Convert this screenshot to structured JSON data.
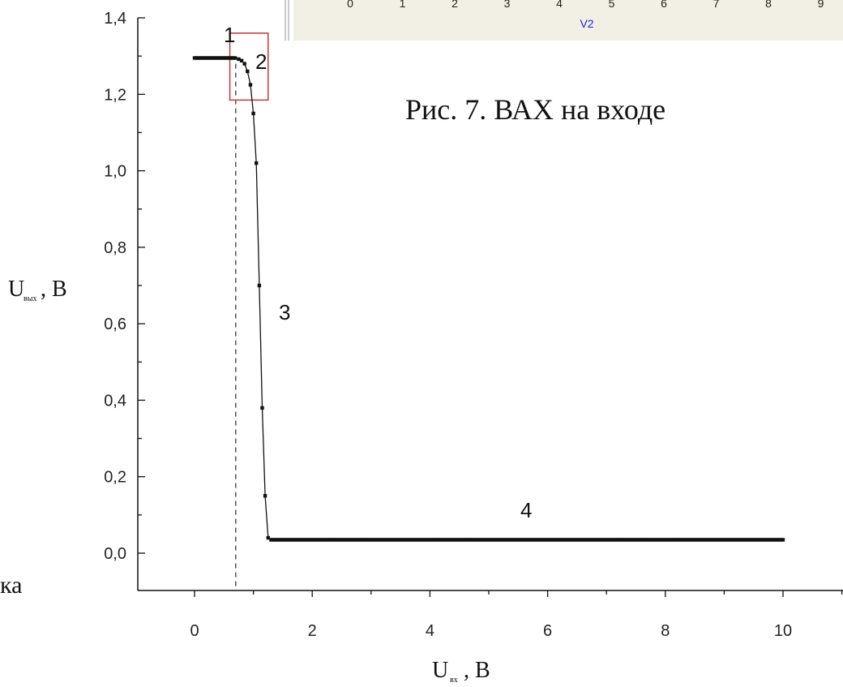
{
  "inset": {
    "ticks": [
      "0",
      "1",
      "2",
      "3",
      "4",
      "5",
      "6",
      "7",
      "8",
      "9"
    ],
    "xlabel": "V2",
    "label_color": "#1f1fd6",
    "background": "#f2f0e4"
  },
  "caption": "Рис. 7. ВАХ на входе",
  "left_fragment": "ка",
  "region_labels": {
    "r1": "1",
    "r2": "2",
    "r3": "3",
    "r4": "4"
  },
  "axis": {
    "ylabel_main": "U",
    "ylabel_sub": "вых",
    "ylabel_unit": ", В",
    "xlabel_main": "U",
    "xlabel_sub": "вх",
    "xlabel_unit": " , В"
  },
  "highlight_color": "#c0393b",
  "chart_data": {
    "type": "scatter",
    "xlim": [
      -1.0,
      11.0
    ],
    "ylim": [
      -0.1,
      1.4
    ],
    "x_ticks": [
      0,
      2,
      4,
      6,
      8,
      10
    ],
    "x_tick_labels": [
      "0",
      "2",
      "4",
      "6",
      "8",
      "10"
    ],
    "y_ticks": [
      0.0,
      0.2,
      0.4,
      0.6,
      0.8,
      1.0,
      1.2,
      1.4
    ],
    "y_tick_labels": [
      "0,0",
      "0,2",
      "0,4",
      "0,6",
      "0,8",
      "1,0",
      "1,2",
      "1,4"
    ],
    "threshold_x": 0.7,
    "highlight_box": {
      "x": [
        0.6,
        1.25
      ],
      "y": [
        1.185,
        1.36
      ]
    },
    "grid": false,
    "transition_points": {
      "x": [
        0.75,
        0.8,
        0.85,
        0.9,
        0.95,
        1.0,
        1.05,
        1.1,
        1.15,
        1.2,
        1.25
      ],
      "y": [
        1.292,
        1.288,
        1.28,
        1.26,
        1.225,
        1.15,
        1.02,
        0.7,
        0.38,
        0.15,
        0.04
      ]
    },
    "flat_high": {
      "x_from": 0.0,
      "x_to": 0.7,
      "y": 1.295
    },
    "flat_low": {
      "x_from": 1.3,
      "x_to": 10.0,
      "y": 0.035
    }
  }
}
